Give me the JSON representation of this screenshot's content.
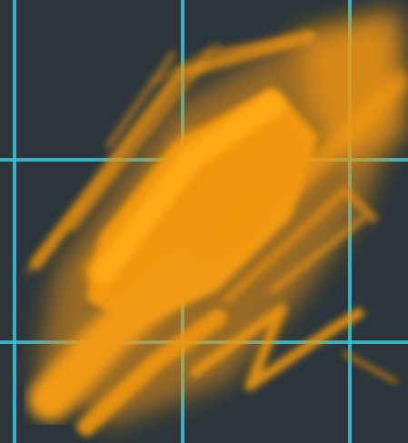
{
  "canvas": {
    "background_color": "#2b353b",
    "grid_color": "#38bfd4",
    "paint_color": "#f0960f",
    "paint_color_dark": "#c8790c"
  }
}
